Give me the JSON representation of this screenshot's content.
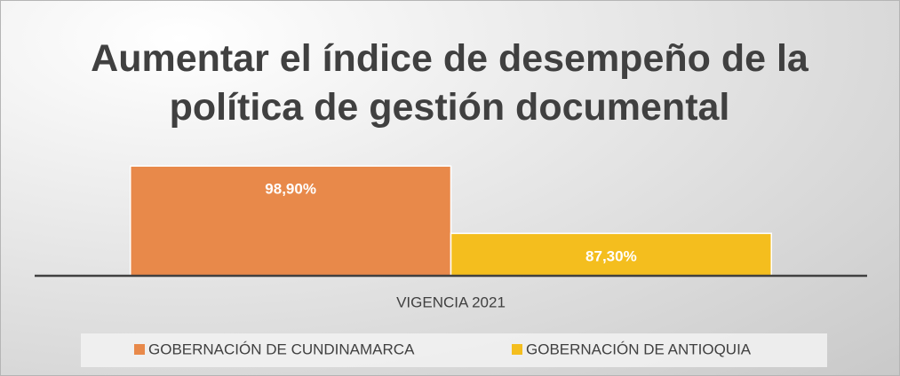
{
  "chart_data": {
    "type": "bar",
    "title": "Aumentar el índice de desempeño de la política de gestión documental",
    "categories": [
      "VIGENCIA 2021"
    ],
    "series": [
      {
        "name": "GOBERNACIÓN DE CUNDINAMARCA",
        "color": "#e8894a",
        "values": [
          98.9
        ],
        "value_labels": [
          "98,90%"
        ]
      },
      {
        "name": "GOBERNACIÓN DE ANTIOQUIA",
        "color": "#f4be1e",
        "values": [
          87.3
        ],
        "value_labels": [
          "87,30%"
        ]
      }
    ],
    "ylim": [
      80,
      100
    ]
  }
}
